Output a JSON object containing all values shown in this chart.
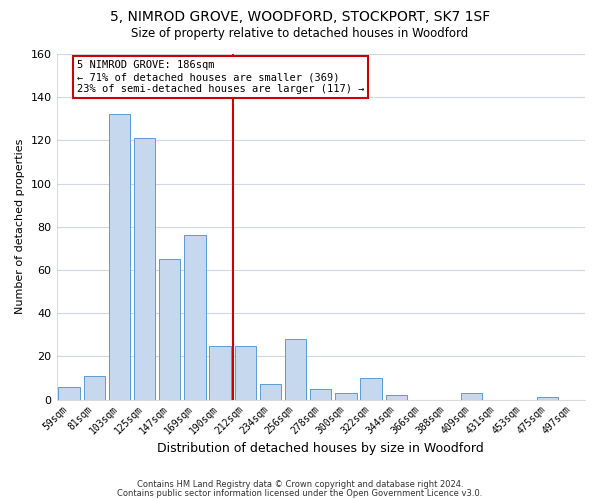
{
  "title": "5, NIMROD GROVE, WOODFORD, STOCKPORT, SK7 1SF",
  "subtitle": "Size of property relative to detached houses in Woodford",
  "xlabel": "Distribution of detached houses by size in Woodford",
  "ylabel": "Number of detached properties",
  "bar_labels": [
    "59sqm",
    "81sqm",
    "103sqm",
    "125sqm",
    "147sqm",
    "169sqm",
    "190sqm",
    "212sqm",
    "234sqm",
    "256sqm",
    "278sqm",
    "300sqm",
    "322sqm",
    "344sqm",
    "366sqm",
    "388sqm",
    "409sqm",
    "431sqm",
    "453sqm",
    "475sqm",
    "497sqm"
  ],
  "bar_values": [
    6,
    11,
    132,
    121,
    65,
    76,
    25,
    25,
    7,
    28,
    5,
    3,
    10,
    2,
    0,
    0,
    3,
    0,
    0,
    1,
    0
  ],
  "bar_color": "#c5d8ee",
  "bar_edge_color": "#5b9bd5",
  "vline_x": 6.5,
  "vline_color": "#cc0000",
  "annotation_title": "5 NIMROD GROVE: 186sqm",
  "annotation_line1": "← 71% of detached houses are smaller (369)",
  "annotation_line2": "23% of semi-detached houses are larger (117) →",
  "annotation_box_color": "#ffffff",
  "annotation_box_edge": "#cc0000",
  "ylim": [
    0,
    160
  ],
  "yticks": [
    0,
    20,
    40,
    60,
    80,
    100,
    120,
    140,
    160
  ],
  "footnote1": "Contains HM Land Registry data © Crown copyright and database right 2024.",
  "footnote2": "Contains public sector information licensed under the Open Government Licence v3.0.",
  "bg_color": "#ffffff",
  "grid_color": "#d0d8e8"
}
